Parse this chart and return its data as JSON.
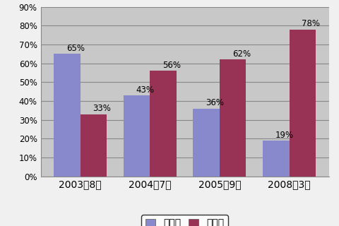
{
  "categories": [
    "2003年8月",
    "2004年7月",
    "2005年9月",
    "2008年3月"
  ],
  "series1_label": "一時的",
  "series2_label": "継続的",
  "series1_values": [
    65,
    43,
    36,
    19
  ],
  "series2_values": [
    33,
    56,
    62,
    78
  ],
  "series1_color": "#8888cc",
  "series2_color": "#993355",
  "bar_width": 0.38,
  "ylim": [
    0,
    90
  ],
  "yticks": [
    0,
    10,
    20,
    30,
    40,
    50,
    60,
    70,
    80,
    90
  ],
  "ytick_labels": [
    "0%",
    "10%",
    "20%",
    "30%",
    "40%",
    "50%",
    "60%",
    "70%",
    "80%",
    "90%"
  ],
  "outer_bg": "#f0f0f0",
  "plot_bg_color": "#c8c8c8",
  "grid_color": "#aaaaaa",
  "label_fontsize": 8.5,
  "tick_fontsize": 8.5,
  "legend_fontsize": 9
}
